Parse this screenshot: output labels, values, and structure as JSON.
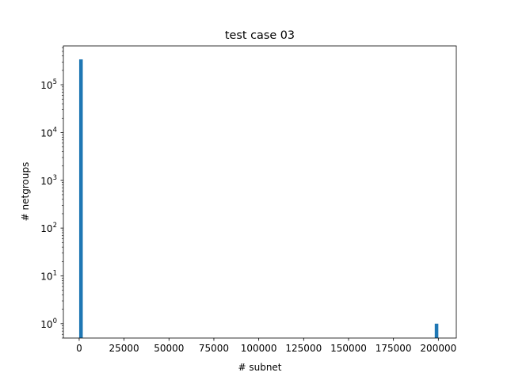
{
  "chart_data": {
    "type": "bar",
    "title": "test case 03",
    "xlabel": "# subnet",
    "ylabel": "# netgroups",
    "yscale": "log",
    "xlim": [
      -8800,
      210000
    ],
    "ylim": [
      0.5,
      650000
    ],
    "x_ticks": [
      {
        "value": 0,
        "label": "0"
      },
      {
        "value": 25000,
        "label": "25000"
      },
      {
        "value": 50000,
        "label": "50000"
      },
      {
        "value": 75000,
        "label": "75000"
      },
      {
        "value": 100000,
        "label": "100000"
      },
      {
        "value": 125000,
        "label": "125000"
      },
      {
        "value": 150000,
        "label": "150000"
      },
      {
        "value": 175000,
        "label": "175000"
      },
      {
        "value": 200000,
        "label": "200000"
      }
    ],
    "y_ticks": [
      {
        "value": 1,
        "base": "10",
        "exp": "0"
      },
      {
        "value": 10,
        "base": "10",
        "exp": "1"
      },
      {
        "value": 100,
        "base": "10",
        "exp": "2"
      },
      {
        "value": 1000,
        "base": "10",
        "exp": "3"
      },
      {
        "value": 10000,
        "base": "10",
        "exp": "4"
      },
      {
        "value": 100000,
        "base": "10",
        "exp": "5"
      }
    ],
    "bar_color": "#1f77b4",
    "bars": [
      {
        "x0": 0,
        "x1": 2000,
        "value": 340000
      },
      {
        "x0": 198000,
        "x1": 200000,
        "value": 1
      }
    ],
    "grid": false
  }
}
